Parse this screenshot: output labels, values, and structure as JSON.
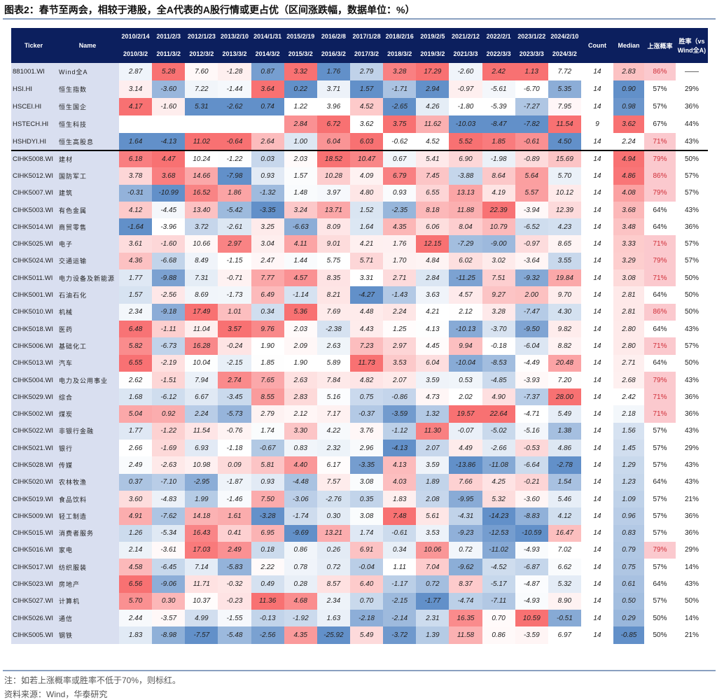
{
  "title": "图表2：春节至两会，相较于港股，全A代表的A股行情或更占优（区间涨跌幅，数据单位：%）",
  "colors": {
    "header_bg": "#0c1f5e",
    "positive": "#f8696b",
    "negative": "#5a8ac6",
    "name_bg": "#d9dff0",
    "highlight_bg": "#fbc9ce",
    "highlight_text": "#d0303a"
  },
  "headers": {
    "ticker": "Ticker",
    "name": "Name",
    "periods": [
      {
        "start": "2010/2/14",
        "end": "2010/3/2"
      },
      {
        "start": "2011/2/3",
        "end": "2011/3/2"
      },
      {
        "start": "2012/1/23",
        "end": "2012/3/2"
      },
      {
        "start": "2013/2/10",
        "end": "2013/3/2"
      },
      {
        "start": "2014/1/31",
        "end": "2014/3/2"
      },
      {
        "start": "2015/2/19",
        "end": "2015/3/2"
      },
      {
        "start": "2016/2/8",
        "end": "2016/3/2"
      },
      {
        "start": "2017/1/28",
        "end": "2017/3/2"
      },
      {
        "start": "2018/2/16",
        "end": "2018/3/2"
      },
      {
        "start": "2019/2/5",
        "end": "2019/3/2"
      },
      {
        "start": "2021/2/12",
        "end": "2021/3/3"
      },
      {
        "start": "2022/2/1",
        "end": "2022/3/3"
      },
      {
        "start": "2023/1/22",
        "end": "2023/3/3"
      },
      {
        "start": "2024/2/10",
        "end": "2024/3/2"
      }
    ],
    "count": "Count",
    "median": "Median",
    "up_prob": "上涨概率",
    "win_rate": "胜率（vs Wind全A)"
  },
  "top_rows": [
    {
      "ticker": "881001.WI",
      "name": "Wind全A",
      "values": [
        "2.87",
        "5.28",
        "7.60",
        "-1.28",
        "0.87",
        "3.32",
        "1.76",
        "2.79",
        "3.28",
        "17.29",
        "-2.60",
        "2.42",
        "1.13",
        "7.72"
      ],
      "count": "14",
      "median": "2.83",
      "up_prob": "86%",
      "win_rate": "——"
    },
    {
      "ticker": "HSI.HI",
      "name": "恒生指数",
      "values": [
        "3.14",
        "-3.60",
        "7.22",
        "-1.44",
        "3.64",
        "0.22",
        "3.71",
        "1.57",
        "-1.71",
        "2.94",
        "-0.97",
        "-5.61",
        "-6.70",
        "5.35"
      ],
      "count": "14",
      "median": "0.90",
      "up_prob": "57%",
      "win_rate": "29%"
    },
    {
      "ticker": "HSCEI.HI",
      "name": "恒生国企",
      "values": [
        "4.17",
        "-1.60",
        "5.31",
        "-2.62",
        "0.74",
        "1.22",
        "3.96",
        "4.52",
        "-2.65",
        "4.26",
        "-1.80",
        "-5.39",
        "-7.27",
        "7.95"
      ],
      "count": "14",
      "median": "0.98",
      "up_prob": "57%",
      "win_rate": "36%"
    },
    {
      "ticker": "HSTECH.HI",
      "name": "恒生科技",
      "values": [
        null,
        null,
        null,
        null,
        null,
        "2.84",
        "6.72",
        "3.62",
        "3.75",
        "11.62",
        "-10.03",
        "-8.47",
        "-7.82",
        "11.54"
      ],
      "count": "9",
      "median": "3.62",
      "up_prob": "67%",
      "win_rate": "44%"
    },
    {
      "ticker": "HSHDYI.HI",
      "name": "恒生高股息",
      "values": [
        "1.64",
        "-4.13",
        "11.02",
        "-0.64",
        "2.64",
        "1.00",
        "6.04",
        "6.03",
        "-0.62",
        "4.52",
        "5.52",
        "1.85",
        "-0.61",
        "4.50"
      ],
      "count": "14",
      "median": "2.24",
      "up_prob": "71%",
      "win_rate": "43%"
    }
  ],
  "rows": [
    {
      "ticker": "CIHK5008.WI",
      "name": "建材",
      "values": [
        "6.18",
        "4.47",
        "10.24",
        "-1.22",
        "0.03",
        "2.03",
        "18.52",
        "10.47",
        "0.67",
        "5.41",
        "6.90",
        "-1.98",
        "-0.89",
        "15.69"
      ],
      "count": "14",
      "median": "4.94",
      "up_prob": "79%",
      "win_rate": "50%"
    },
    {
      "ticker": "CIHK5012.WI",
      "name": "国防军工",
      "values": [
        "3.78",
        "3.68",
        "14.66",
        "-7.98",
        "0.93",
        "1.57",
        "10.28",
        "4.09",
        "6.79",
        "7.45",
        "-3.88",
        "8.64",
        "5.64",
        "5.70"
      ],
      "count": "14",
      "median": "4.86",
      "up_prob": "86%",
      "win_rate": "57%"
    },
    {
      "ticker": "CIHK5007.WI",
      "name": "建筑",
      "values": [
        "-0.31",
        "-10.99",
        "16.52",
        "1.86",
        "-1.32",
        "1.48",
        "3.97",
        "4.80",
        "0.93",
        "6.55",
        "13.13",
        "4.19",
        "5.57",
        "10.12"
      ],
      "count": "14",
      "median": "4.08",
      "up_prob": "79%",
      "win_rate": "57%"
    },
    {
      "ticker": "CIHK5003.WI",
      "name": "有色金属",
      "values": [
        "4.12",
        "-4.45",
        "13.40",
        "-5.42",
        "-3.35",
        "3.24",
        "13.71",
        "1.52",
        "-2.35",
        "8.18",
        "11.88",
        "22.39",
        "-3.94",
        "12.39"
      ],
      "count": "14",
      "median": "3.68",
      "up_prob": "64%",
      "win_rate": "43%"
    },
    {
      "ticker": "CIHK5014.WI",
      "name": "商贸零售",
      "values": [
        "-1.64",
        "-3.96",
        "3.72",
        "-2.61",
        "3.25",
        "-6.63",
        "8.09",
        "1.64",
        "4.35",
        "6.06",
        "8.04",
        "10.79",
        "-6.52",
        "4.23"
      ],
      "count": "14",
      "median": "3.48",
      "up_prob": "64%",
      "win_rate": "36%"
    },
    {
      "ticker": "CIHK5025.WI",
      "name": "电子",
      "values": [
        "3.61",
        "-1.60",
        "10.66",
        "2.97",
        "3.04",
        "4.11",
        "9.01",
        "4.21",
        "1.76",
        "12.15",
        "-7.29",
        "-9.00",
        "-0.97",
        "8.65"
      ],
      "count": "14",
      "median": "3.33",
      "up_prob": "71%",
      "win_rate": "57%"
    },
    {
      "ticker": "CIHK5024.WI",
      "name": "交通运输",
      "values": [
        "4.36",
        "-6.68",
        "8.49",
        "-1.15",
        "2.47",
        "1.44",
        "5.75",
        "5.71",
        "1.70",
        "4.84",
        "6.02",
        "3.02",
        "-3.64",
        "3.55"
      ],
      "count": "14",
      "median": "3.29",
      "up_prob": "79%",
      "win_rate": "57%"
    },
    {
      "ticker": "CIHK5011.WI",
      "name": "电力设备及新能源",
      "values": [
        "1.77",
        "-9.88",
        "7.31",
        "-0.71",
        "7.77",
        "4.57",
        "8.35",
        "3.31",
        "2.71",
        "2.84",
        "-11.25",
        "7.51",
        "-9.32",
        "19.84"
      ],
      "count": "14",
      "median": "3.08",
      "up_prob": "71%",
      "win_rate": "50%"
    },
    {
      "ticker": "CIHK5001.WI",
      "name": "石油石化",
      "values": [
        "1.57",
        "-2.56",
        "8.69",
        "-1.73",
        "6.49",
        "-1.14",
        "8.21",
        "-4.27",
        "-1.43",
        "3.63",
        "4.57",
        "9.27",
        "2.00",
        "9.70"
      ],
      "count": "14",
      "median": "2.81",
      "up_prob": "64%",
      "win_rate": "50%"
    },
    {
      "ticker": "CIHK5010.WI",
      "name": "机械",
      "values": [
        "2.34",
        "-9.18",
        "17.49",
        "1.01",
        "0.34",
        "5.36",
        "7.69",
        "4.48",
        "2.24",
        "4.21",
        "2.12",
        "3.28",
        "-7.47",
        "4.30"
      ],
      "count": "14",
      "median": "2.81",
      "up_prob": "86%",
      "win_rate": "50%"
    },
    {
      "ticker": "CIHK5018.WI",
      "name": "医药",
      "values": [
        "6.48",
        "-1.11",
        "11.04",
        "3.57",
        "9.76",
        "2.03",
        "-2.38",
        "4.43",
        "1.25",
        "4.13",
        "-10.13",
        "-3.70",
        "-9.50",
        "9.82"
      ],
      "count": "14",
      "median": "2.80",
      "up_prob": "64%",
      "win_rate": "43%"
    },
    {
      "ticker": "CIHK5006.WI",
      "name": "基础化工",
      "values": [
        "5.82",
        "-6.73",
        "16.28",
        "-0.24",
        "1.90",
        "2.09",
        "2.63",
        "7.23",
        "2.97",
        "4.45",
        "9.94",
        "-0.18",
        "-6.04",
        "8.82"
      ],
      "count": "14",
      "median": "2.80",
      "up_prob": "71%",
      "win_rate": "57%"
    },
    {
      "ticker": "CIHK5013.WI",
      "name": "汽车",
      "values": [
        "6.55",
        "-2.19",
        "10.04",
        "-2.15",
        "1.85",
        "1.90",
        "5.89",
        "11.73",
        "3.53",
        "6.04",
        "-10.04",
        "-8.53",
        "-4.49",
        "20.48"
      ],
      "count": "14",
      "median": "2.71",
      "up_prob": "64%",
      "win_rate": "50%"
    },
    {
      "ticker": "CIHK5004.WI",
      "name": "电力及公用事业",
      "values": [
        "2.62",
        "-1.51",
        "7.94",
        "2.74",
        "7.65",
        "2.63",
        "7.84",
        "4.82",
        "2.07",
        "3.59",
        "0.53",
        "-4.85",
        "-3.93",
        "7.20"
      ],
      "count": "14",
      "median": "2.68",
      "up_prob": "79%",
      "win_rate": "43%"
    },
    {
      "ticker": "CIHK5029.WI",
      "name": "综合",
      "values": [
        "1.68",
        "-6.12",
        "6.67",
        "-3.45",
        "8.55",
        "2.83",
        "5.16",
        "0.75",
        "-0.86",
        "4.73",
        "2.02",
        "4.90",
        "-7.37",
        "28.00"
      ],
      "count": "14",
      "median": "2.42",
      "up_prob": "71%",
      "win_rate": "36%"
    },
    {
      "ticker": "CIHK5002.WI",
      "name": "煤炭",
      "values": [
        "5.04",
        "0.92",
        "2.24",
        "-5.73",
        "2.79",
        "2.12",
        "7.17",
        "-0.37",
        "-3.59",
        "1.32",
        "19.57",
        "22.64",
        "-4.71",
        "5.49"
      ],
      "count": "14",
      "median": "2.18",
      "up_prob": "71%",
      "win_rate": "36%"
    },
    {
      "ticker": "CIHK5022.WI",
      "name": "非银行金融",
      "values": [
        "1.77",
        "-1.22",
        "11.54",
        "-0.76",
        "1.74",
        "3.30",
        "4.22",
        "3.76",
        "-1.12",
        "11.30",
        "-0.07",
        "-5.02",
        "-5.16",
        "1.38"
      ],
      "count": "14",
      "median": "1.56",
      "up_prob": "57%",
      "win_rate": "43%"
    },
    {
      "ticker": "CIHK5021.WI",
      "name": "银行",
      "values": [
        "2.66",
        "-1.69",
        "6.93",
        "-1.18",
        "-0.67",
        "0.83",
        "2.32",
        "2.96",
        "-4.13",
        "2.07",
        "4.49",
        "-2.66",
        "-0.53",
        "4.86"
      ],
      "count": "14",
      "median": "1.45",
      "up_prob": "57%",
      "win_rate": "29%"
    },
    {
      "ticker": "CIHK5028.WI",
      "name": "传媒",
      "values": [
        "2.49",
        "-2.63",
        "10.98",
        "0.09",
        "5.81",
        "4.40",
        "6.17",
        "-3.35",
        "4.13",
        "3.59",
        "-13.86",
        "-11.08",
        "-6.64",
        "-2.78"
      ],
      "count": "14",
      "median": "1.29",
      "up_prob": "57%",
      "win_rate": "43%"
    },
    {
      "ticker": "CIHK5020.WI",
      "name": "农林牧渔",
      "values": [
        "0.37",
        "-7.10",
        "-2.95",
        "-1.87",
        "0.93",
        "-4.48",
        "7.57",
        "3.08",
        "4.03",
        "1.89",
        "7.66",
        "4.25",
        "-0.21",
        "1.54"
      ],
      "count": "14",
      "median": "1.23",
      "up_prob": "64%",
      "win_rate": "43%"
    },
    {
      "ticker": "CIHK5019.WI",
      "name": "食品饮料",
      "values": [
        "3.60",
        "-4.83",
        "1.99",
        "-1.46",
        "7.50",
        "-3.06",
        "-2.76",
        "0.35",
        "1.83",
        "2.08",
        "-9.95",
        "5.32",
        "-3.60",
        "5.46"
      ],
      "count": "14",
      "median": "1.09",
      "up_prob": "57%",
      "win_rate": "21%"
    },
    {
      "ticker": "CIHK5009.WI",
      "name": "轻工制造",
      "values": [
        "4.91",
        "-7.62",
        "14.18",
        "1.61",
        "-3.28",
        "-1.74",
        "0.30",
        "3.08",
        "7.48",
        "5.61",
        "-4.31",
        "-14.23",
        "-8.83",
        "4.12"
      ],
      "count": "14",
      "median": "0.96",
      "up_prob": "57%",
      "win_rate": "36%"
    },
    {
      "ticker": "CIHK5015.WI",
      "name": "消费者服务",
      "values": [
        "1.26",
        "-5.34",
        "16.43",
        "0.41",
        "6.95",
        "-9.69",
        "13.21",
        "1.74",
        "-0.61",
        "3.53",
        "-9.23",
        "-12.53",
        "-10.59",
        "16.47"
      ],
      "count": "14",
      "median": "0.83",
      "up_prob": "57%",
      "win_rate": "36%"
    },
    {
      "ticker": "CIHK5016.WI",
      "name": "家电",
      "values": [
        "2.14",
        "-3.61",
        "17.03",
        "2.49",
        "0.18",
        "0.86",
        "0.26",
        "6.91",
        "0.34",
        "10.06",
        "0.72",
        "-11.02",
        "-4.93",
        "7.02"
      ],
      "count": "14",
      "median": "0.79",
      "up_prob": "79%",
      "win_rate": "29%"
    },
    {
      "ticker": "CIHK5017.WI",
      "name": "纺织服装",
      "values": [
        "4.58",
        "-6.45",
        "7.14",
        "-5.83",
        "2.22",
        "0.78",
        "0.72",
        "-0.04",
        "1.11",
        "7.04",
        "-9.62",
        "-4.52",
        "-6.87",
        "6.62"
      ],
      "count": "14",
      "median": "0.75",
      "up_prob": "57%",
      "win_rate": "14%"
    },
    {
      "ticker": "CIHK5023.WI",
      "name": "房地产",
      "values": [
        "6.56",
        "-9.06",
        "11.71",
        "-0.32",
        "0.49",
        "0.28",
        "8.57",
        "6.40",
        "-1.17",
        "0.72",
        "8.37",
        "-5.17",
        "-4.87",
        "5.32"
      ],
      "count": "14",
      "median": "0.61",
      "up_prob": "64%",
      "win_rate": "43%"
    },
    {
      "ticker": "CIHK5027.WI",
      "name": "计算机",
      "values": [
        "5.70",
        "0.30",
        "10.37",
        "-0.23",
        "11.36",
        "4.68",
        "2.34",
        "0.70",
        "-2.15",
        "-1.77",
        "-4.74",
        "-7.11",
        "-4.93",
        "8.90"
      ],
      "count": "14",
      "median": "0.50",
      "up_prob": "57%",
      "win_rate": "50%"
    },
    {
      "ticker": "CIHK5026.WI",
      "name": "通信",
      "values": [
        "2.44",
        "-3.57",
        "4.99",
        "-1.55",
        "-0.13",
        "-1.92",
        "1.63",
        "-2.18",
        "-2.14",
        "2.31",
        "16.35",
        "0.70",
        "10.59",
        "-0.51"
      ],
      "count": "14",
      "median": "0.29",
      "up_prob": "50%",
      "win_rate": "14%"
    },
    {
      "ticker": "CIHK5005.WI",
      "name": "钢铁",
      "values": [
        "1.83",
        "-8.98",
        "-7.57",
        "-5.48",
        "-2.56",
        "4.35",
        "-25.92",
        "5.49",
        "-3.72",
        "1.39",
        "11.58",
        "0.86",
        "-3.59",
        "6.97"
      ],
      "count": "14",
      "median": "-0.85",
      "up_prob": "50%",
      "win_rate": "21%"
    }
  ],
  "highlight_threshold_pct": 70,
  "note": "注：如若上涨概率或胜率不低于70%，则标红。",
  "source": "资料来源：Wind，华泰研究"
}
